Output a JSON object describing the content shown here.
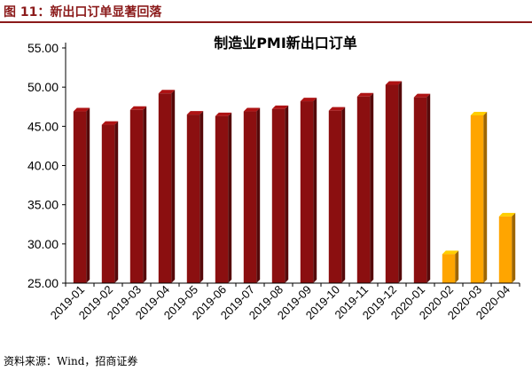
{
  "figure_label": "图 11：新出口订单显著回落",
  "source_note": "资料来源：Wind，招商证券",
  "colors": {
    "header": "#8B1A1A",
    "bar_dark": "#8B0F10",
    "bar_highlight": "#FFA500"
  },
  "chart_data": {
    "type": "bar",
    "title": "制造业PMI新出口订单",
    "xlabel": "",
    "ylabel": "",
    "ylim": [
      25,
      55
    ],
    "yticks": [
      "25.00",
      "30.00",
      "35.00",
      "40.00",
      "45.00",
      "50.00",
      "55.00"
    ],
    "grid": false,
    "legend": "none",
    "categories": [
      "2019-01",
      "2019-02",
      "2019-03",
      "2019-04",
      "2019-05",
      "2019-06",
      "2019-07",
      "2019-08",
      "2019-09",
      "2019-10",
      "2019-11",
      "2019-12",
      "2020-01",
      "2020-02",
      "2020-03",
      "2020-04"
    ],
    "values": [
      46.9,
      45.2,
      47.1,
      49.2,
      46.5,
      46.3,
      46.9,
      47.2,
      48.2,
      47.0,
      48.8,
      50.3,
      48.7,
      28.7,
      46.4,
      33.5
    ],
    "highlight_categories": [
      "2020-02",
      "2020-03",
      "2020-04"
    ]
  }
}
